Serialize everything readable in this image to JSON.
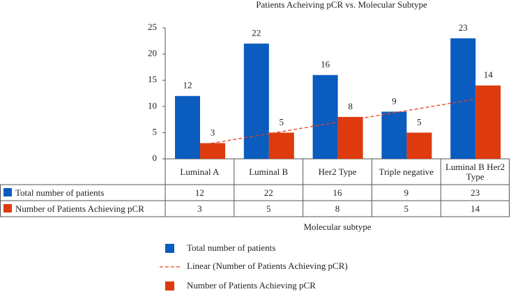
{
  "chart_data": {
    "type": "bar",
    "title": "Patients Acheiving pCR vs. Molecular Subtype",
    "categories": [
      "Luminal A",
      "Luminal B",
      "Her2 Type",
      "Triple negative",
      "Luminal B Her2 Type"
    ],
    "series": [
      {
        "name": "Total number of patients",
        "color": "#0a5cbf",
        "values": [
          12,
          22,
          16,
          9,
          23
        ]
      },
      {
        "name": "Number of Patients Achieving pCR",
        "color": "#dd3a0e",
        "values": [
          3,
          5,
          8,
          5,
          14
        ]
      }
    ],
    "trendline": {
      "name": "Linear (Number of Patients Achieving pCR)",
      "color": "#e8401c",
      "series": 1
    },
    "x_label": "Molecular subtype",
    "ylim": [
      0,
      25
    ],
    "yticks": [
      0,
      5,
      10,
      15,
      20,
      25
    ]
  }
}
